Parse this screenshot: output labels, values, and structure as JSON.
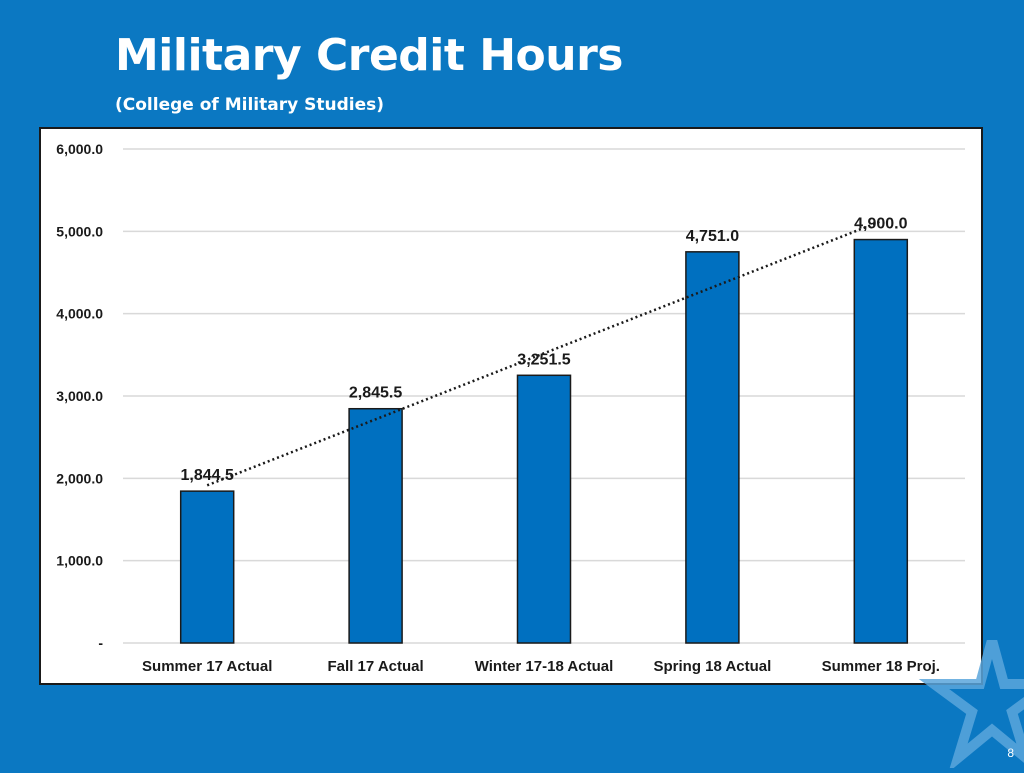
{
  "slide": {
    "title": "Military Credit Hours",
    "subtitle": "(College of Military Studies)",
    "page_number": "8"
  },
  "colors": {
    "background": "#0b78c2",
    "bar_fill": "#0070c0",
    "bar_stroke": "#1a1a1a",
    "trendline": "#1a1a1a",
    "gridline": "#d9d9d9"
  },
  "chart_data": {
    "type": "bar",
    "title": "",
    "xlabel": "",
    "ylabel": "",
    "categories": [
      "Summer 17 Actual",
      "Fall 17 Actual",
      "Winter 17-18 Actual",
      "Spring 18 Actual",
      "Summer 18 Proj."
    ],
    "values": [
      1844.5,
      2845.5,
      3251.5,
      4751.0,
      4900.0
    ],
    "data_labels": [
      "1,844.5",
      "2,845.5",
      "3,251.5",
      "4,751.0",
      "4,900.0"
    ],
    "ylim": [
      0,
      6000
    ],
    "yticks": [
      0,
      1000,
      2000,
      3000,
      4000,
      5000,
      6000
    ],
    "ytick_labels": [
      "-",
      "1,000.0",
      "2,000.0",
      "3,000.0",
      "4,000.0",
      "5,000.0",
      "6,000.0"
    ],
    "grid": true,
    "legend": "none",
    "trendline": "linear (dotted)"
  }
}
